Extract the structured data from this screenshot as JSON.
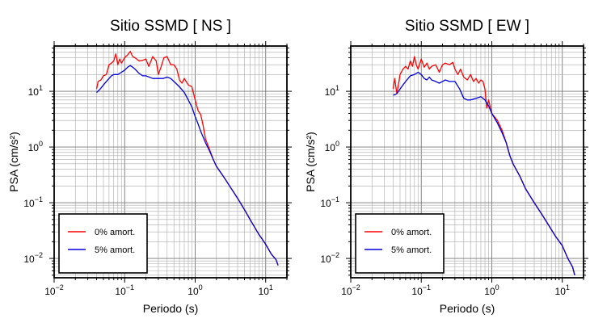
{
  "chart_data": [
    {
      "type": "line",
      "title": "Sitio SSMD [ NS ]",
      "xlabel": "Periodo (s)",
      "ylabel": "PSA (cm/s²)",
      "xscale": "log",
      "yscale": "log",
      "xlim": [
        0.01,
        20
      ],
      "ylim": [
        0.0045,
        65
      ],
      "xticks": [
        {
          "v": 0.01,
          "b": "10",
          "e": "−2"
        },
        {
          "v": 0.1,
          "b": "10",
          "e": "−1"
        },
        {
          "v": 1,
          "b": "10",
          "e": "0"
        },
        {
          "v": 10,
          "b": "10",
          "e": "1"
        }
      ],
      "yticks": [
        {
          "v": 0.01,
          "b": "10",
          "e": "−2"
        },
        {
          "v": 0.1,
          "b": "10",
          "e": "−1"
        },
        {
          "v": 1,
          "b": "10",
          "e": "0"
        },
        {
          "v": 10,
          "b": "10",
          "e": "1"
        }
      ],
      "grid": true,
      "legend_position": "bottom-left",
      "series": [
        {
          "name": "0% amort.",
          "color": "#ff0000",
          "points": [
            [
              0.04,
              11
            ],
            [
              0.042,
              15
            ],
            [
              0.046,
              16
            ],
            [
              0.05,
              19
            ],
            [
              0.055,
              20
            ],
            [
              0.06,
              30
            ],
            [
              0.065,
              32
            ],
            [
              0.07,
              35
            ],
            [
              0.075,
              47
            ],
            [
              0.08,
              30
            ],
            [
              0.085,
              38
            ],
            [
              0.09,
              32
            ],
            [
              0.1,
              40
            ],
            [
              0.11,
              45
            ],
            [
              0.12,
              52
            ],
            [
              0.13,
              42
            ],
            [
              0.14,
              40
            ],
            [
              0.16,
              35
            ],
            [
              0.18,
              36
            ],
            [
              0.2,
              38
            ],
            [
              0.22,
              28
            ],
            [
              0.25,
              42
            ],
            [
              0.28,
              35
            ],
            [
              0.3,
              20
            ],
            [
              0.33,
              28
            ],
            [
              0.36,
              40
            ],
            [
              0.4,
              42
            ],
            [
              0.45,
              30
            ],
            [
              0.5,
              30
            ],
            [
              0.55,
              25
            ],
            [
              0.6,
              16
            ],
            [
              0.65,
              14
            ],
            [
              0.7,
              17
            ],
            [
              0.8,
              13
            ],
            [
              0.9,
              12
            ],
            [
              1.0,
              7
            ],
            [
              1.1,
              4.5
            ],
            [
              1.2,
              3.8
            ],
            [
              1.3,
              2.4
            ],
            [
              1.4,
              1.4
            ],
            [
              1.6,
              0.9
            ],
            [
              1.8,
              0.6
            ],
            [
              2.0,
              0.45
            ],
            [
              2.5,
              0.3
            ],
            [
              3.0,
              0.21
            ],
            [
              4.0,
              0.12
            ],
            [
              5.0,
              0.075
            ],
            [
              6.0,
              0.05
            ],
            [
              8.0,
              0.027
            ],
            [
              10.0,
              0.018
            ],
            [
              12.0,
              0.012
            ],
            [
              14.0,
              0.0095
            ],
            [
              15.0,
              0.0075
            ]
          ]
        },
        {
          "name": "5% amort.",
          "color": "#0000dd",
          "points": [
            [
              0.04,
              9.5
            ],
            [
              0.045,
              11
            ],
            [
              0.05,
              13
            ],
            [
              0.055,
              15
            ],
            [
              0.06,
              17
            ],
            [
              0.065,
              19
            ],
            [
              0.07,
              20
            ],
            [
              0.08,
              20
            ],
            [
              0.09,
              22
            ],
            [
              0.1,
              24
            ],
            [
              0.11,
              27
            ],
            [
              0.12,
              29
            ],
            [
              0.13,
              27
            ],
            [
              0.14,
              25
            ],
            [
              0.16,
              21
            ],
            [
              0.18,
              19
            ],
            [
              0.2,
              19
            ],
            [
              0.25,
              17
            ],
            [
              0.3,
              17
            ],
            [
              0.35,
              17
            ],
            [
              0.4,
              18
            ],
            [
              0.45,
              17
            ],
            [
              0.5,
              15
            ],
            [
              0.6,
              12
            ],
            [
              0.7,
              9.5
            ],
            [
              0.8,
              7
            ],
            [
              0.9,
              5.2
            ],
            [
              1.0,
              3.5
            ],
            [
              1.1,
              2.6
            ],
            [
              1.2,
              1.9
            ],
            [
              1.3,
              1.5
            ],
            [
              1.4,
              1.2
            ],
            [
              1.6,
              0.85
            ],
            [
              1.8,
              0.6
            ],
            [
              2.0,
              0.45
            ],
            [
              2.5,
              0.3
            ],
            [
              3.0,
              0.21
            ],
            [
              4.0,
              0.12
            ],
            [
              5.0,
              0.075
            ],
            [
              6.0,
              0.05
            ],
            [
              8.0,
              0.027
            ],
            [
              10.0,
              0.018
            ],
            [
              12.0,
              0.012
            ],
            [
              14.0,
              0.0095
            ],
            [
              15.0,
              0.0075
            ]
          ]
        }
      ]
    },
    {
      "type": "line",
      "title": "Sitio SSMD [ EW ]",
      "xlabel": "Periodo (s)",
      "ylabel": "PSA (cm/s²)",
      "xscale": "log",
      "yscale": "log",
      "xlim": [
        0.01,
        20
      ],
      "ylim": [
        0.0045,
        65
      ],
      "xticks": [
        {
          "v": 0.01,
          "b": "10",
          "e": "−2"
        },
        {
          "v": 0.1,
          "b": "10",
          "e": "−1"
        },
        {
          "v": 1,
          "b": "10",
          "e": "0"
        },
        {
          "v": 10,
          "b": "10",
          "e": "1"
        }
      ],
      "yticks": [
        {
          "v": 0.01,
          "b": "10",
          "e": "−2"
        },
        {
          "v": 0.1,
          "b": "10",
          "e": "−1"
        },
        {
          "v": 1,
          "b": "10",
          "e": "0"
        },
        {
          "v": 10,
          "b": "10",
          "e": "1"
        }
      ],
      "grid": true,
      "legend_position": "bottom-left",
      "series": [
        {
          "name": "0% amort.",
          "color": "#ff0000",
          "points": [
            [
              0.04,
              11
            ],
            [
              0.042,
              17
            ],
            [
              0.045,
              9
            ],
            [
              0.05,
              20
            ],
            [
              0.055,
              25
            ],
            [
              0.06,
              28
            ],
            [
              0.065,
              25
            ],
            [
              0.07,
              35
            ],
            [
              0.075,
              28
            ],
            [
              0.08,
              42
            ],
            [
              0.085,
              30
            ],
            [
              0.09,
              25
            ],
            [
              0.1,
              38
            ],
            [
              0.11,
              27
            ],
            [
              0.12,
              32
            ],
            [
              0.13,
              25
            ],
            [
              0.14,
              28
            ],
            [
              0.16,
              30
            ],
            [
              0.18,
              22
            ],
            [
              0.2,
              30
            ],
            [
              0.22,
              32
            ],
            [
              0.25,
              30
            ],
            [
              0.28,
              33
            ],
            [
              0.3,
              25
            ],
            [
              0.33,
              20
            ],
            [
              0.36,
              25
            ],
            [
              0.4,
              18
            ],
            [
              0.45,
              16
            ],
            [
              0.5,
              20
            ],
            [
              0.55,
              15
            ],
            [
              0.6,
              17
            ],
            [
              0.65,
              14
            ],
            [
              0.7,
              16
            ],
            [
              0.75,
              15
            ],
            [
              0.8,
              11
            ],
            [
              0.85,
              5
            ],
            [
              0.9,
              7
            ],
            [
              1.0,
              4
            ],
            [
              1.2,
              3
            ],
            [
              1.4,
              2
            ],
            [
              1.6,
              1.2
            ],
            [
              1.8,
              0.7
            ],
            [
              2.0,
              0.5
            ],
            [
              2.5,
              0.3
            ],
            [
              3.0,
              0.18
            ],
            [
              4.0,
              0.1
            ],
            [
              5.0,
              0.065
            ],
            [
              6.0,
              0.045
            ],
            [
              8.0,
              0.025
            ],
            [
              10.0,
              0.017
            ],
            [
              12.0,
              0.01
            ],
            [
              14.0,
              0.007
            ],
            [
              15.0,
              0.005
            ]
          ]
        },
        {
          "name": "5% amort.",
          "color": "#0000dd",
          "points": [
            [
              0.04,
              8.5
            ],
            [
              0.045,
              9
            ],
            [
              0.05,
              11
            ],
            [
              0.055,
              13
            ],
            [
              0.06,
              15
            ],
            [
              0.065,
              17
            ],
            [
              0.07,
              19
            ],
            [
              0.08,
              20
            ],
            [
              0.09,
              22
            ],
            [
              0.1,
              20
            ],
            [
              0.11,
              17
            ],
            [
              0.12,
              16
            ],
            [
              0.13,
              18
            ],
            [
              0.14,
              16
            ],
            [
              0.16,
              15
            ],
            [
              0.18,
              14
            ],
            [
              0.2,
              15
            ],
            [
              0.22,
              16
            ],
            [
              0.25,
              15
            ],
            [
              0.3,
              15
            ],
            [
              0.35,
              11
            ],
            [
              0.4,
              7.5
            ],
            [
              0.45,
              7
            ],
            [
              0.5,
              7
            ],
            [
              0.6,
              7.5
            ],
            [
              0.7,
              8
            ],
            [
              0.8,
              7
            ],
            [
              0.9,
              5.5
            ],
            [
              1.0,
              4
            ],
            [
              1.2,
              2.7
            ],
            [
              1.4,
              1.8
            ],
            [
              1.6,
              1.2
            ],
            [
              1.8,
              0.7
            ],
            [
              2.0,
              0.5
            ],
            [
              2.5,
              0.3
            ],
            [
              3.0,
              0.18
            ],
            [
              4.0,
              0.1
            ],
            [
              5.0,
              0.065
            ],
            [
              6.0,
              0.045
            ],
            [
              8.0,
              0.025
            ],
            [
              10.0,
              0.017
            ],
            [
              12.0,
              0.01
            ],
            [
              14.0,
              0.007
            ],
            [
              15.0,
              0.005
            ]
          ]
        }
      ]
    }
  ]
}
